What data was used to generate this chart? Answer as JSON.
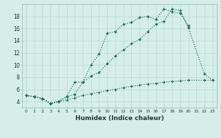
{
  "xlabel": "Humidex (Indice chaleur)",
  "bg_color": "#d6eeea",
  "grid_color_major": "#c8e0dc",
  "grid_color_minor": "#e0f0ee",
  "line_color": "#1a6b5a",
  "xlim": [
    -0.5,
    23.5
  ],
  "ylim": [
    3.0,
    20.0
  ],
  "yticks": [
    4,
    6,
    8,
    10,
    12,
    14,
    16,
    18
  ],
  "xticks": [
    0,
    1,
    2,
    3,
    4,
    5,
    6,
    7,
    8,
    9,
    10,
    11,
    12,
    13,
    14,
    15,
    16,
    17,
    18,
    19,
    20,
    21,
    22,
    23
  ],
  "series1_x": [
    0,
    1,
    2,
    3,
    4,
    5,
    6,
    7,
    8,
    9,
    10,
    11,
    12,
    13,
    14,
    15,
    16,
    17,
    18,
    19,
    20
  ],
  "series1_y": [
    5.0,
    4.8,
    4.5,
    3.7,
    4.0,
    4.8,
    7.2,
    7.2,
    10.0,
    11.8,
    15.2,
    15.5,
    16.7,
    17.0,
    17.8,
    18.0,
    17.5,
    19.2,
    18.8,
    18.5,
    16.5
  ],
  "series2_x": [
    0,
    1,
    2,
    3,
    4,
    5,
    6,
    7,
    8,
    9,
    10,
    11,
    12,
    13,
    14,
    15,
    16,
    17,
    18,
    19,
    20,
    22,
    23
  ],
  "series2_y": [
    5.0,
    4.8,
    4.5,
    3.7,
    4.0,
    4.8,
    5.2,
    7.2,
    8.2,
    8.8,
    10.2,
    11.5,
    12.5,
    13.5,
    14.2,
    15.5,
    16.7,
    17.2,
    19.2,
    19.0,
    16.2,
    8.5,
    7.5
  ],
  "series3_x": [
    0,
    1,
    2,
    3,
    4,
    5,
    6,
    7,
    8,
    9,
    10,
    11,
    12,
    13,
    14,
    15,
    16,
    17,
    18,
    19,
    20,
    22,
    23
  ],
  "series3_y": [
    5.0,
    4.8,
    4.5,
    3.7,
    4.0,
    4.3,
    4.6,
    5.0,
    5.3,
    5.5,
    5.8,
    6.0,
    6.3,
    6.5,
    6.7,
    6.9,
    7.0,
    7.2,
    7.3,
    7.4,
    7.5,
    7.5,
    7.5
  ]
}
